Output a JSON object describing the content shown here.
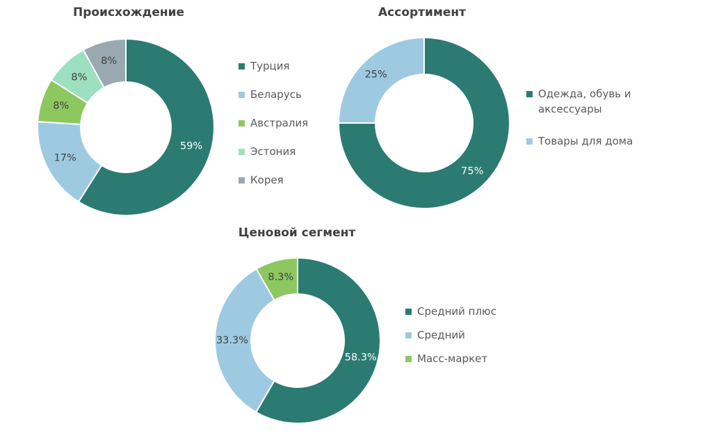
{
  "colors": {
    "teal": "#2b7b72",
    "light_blue": "#9ecae1",
    "green": "#8cc85f",
    "mint": "#9de0bf",
    "gray": "#98a9b1",
    "title": "#404040",
    "legend_text": "#595959"
  },
  "chart_data": [
    {
      "type": "pie",
      "subtype": "donut",
      "title": "Происхождение",
      "categories": [
        "Турция",
        "Беларусь",
        "Австралия",
        "Эстония",
        "Корея"
      ],
      "values": [
        59,
        17,
        8,
        8,
        8
      ],
      "labels": [
        "59%",
        "17%",
        "8%",
        "8%",
        "8%"
      ],
      "colors": [
        "#2b7b72",
        "#9ecae1",
        "#8cc85f",
        "#9de0bf",
        "#98a9b1"
      ],
      "label_colors": [
        "#ffffff",
        "#404040",
        "#404040",
        "#404040",
        "#404040"
      ],
      "legend_position": "right"
    },
    {
      "type": "pie",
      "subtype": "donut",
      "title": "Ассортимент",
      "categories": [
        "Одежда, обувь и аксессуары",
        "Товары для дома"
      ],
      "values": [
        75,
        25
      ],
      "labels": [
        "75%",
        "25%"
      ],
      "colors": [
        "#2b7b72",
        "#9ecae1"
      ],
      "label_colors": [
        "#ffffff",
        "#404040"
      ],
      "legend_position": "right"
    },
    {
      "type": "pie",
      "subtype": "donut",
      "title": "Ценовой сегмент",
      "categories": [
        "Средний плюс",
        "Средний",
        "Масс-маркет"
      ],
      "values": [
        58.3,
        33.3,
        8.3
      ],
      "labels": [
        "58.3%",
        "33.3%",
        "8.3%"
      ],
      "colors": [
        "#2b7b72",
        "#9ecae1",
        "#8cc85f"
      ],
      "label_colors": [
        "#ffffff",
        "#404040",
        "#404040"
      ],
      "legend_position": "right"
    }
  ]
}
